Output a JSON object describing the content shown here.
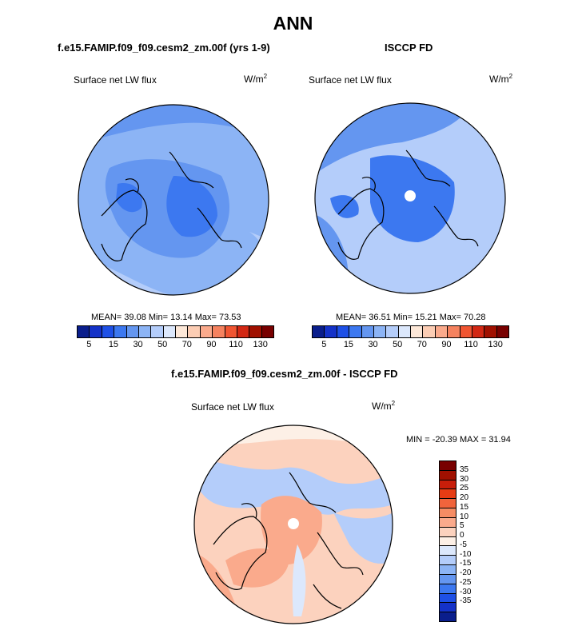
{
  "title": "ANN",
  "panels": {
    "model": {
      "title": "f.e15.FAMIP.f09_f09.cesm2_zm.00f (yrs 1-9)",
      "variable": "Surface net LW flux",
      "units": "W/m",
      "units_sup": "2",
      "mean_label": "MEAN=",
      "mean": "39.08",
      "min_label": "Min=",
      "min": "13.14",
      "max_label": "Max=",
      "max": "73.53"
    },
    "obs": {
      "title": "ISCCP FD",
      "variable": "Surface net LW flux",
      "units": "W/m",
      "units_sup": "2",
      "mean_label": "MEAN=",
      "mean": "36.51",
      "min_label": "Min=",
      "min": "15.21",
      "max_label": "Max=",
      "max": "70.28"
    },
    "diff": {
      "title": "f.e15.FAMIP.f09_f09.cesm2_zm.00f - ISCCP FD",
      "variable": "Surface net LW flux",
      "units": "W/m",
      "units_sup": "2",
      "stats_text": "MIN = -20.39 MAX =  31.94"
    }
  },
  "colorbars": {
    "field_ticks": [
      "5",
      "15",
      "30",
      "50",
      "70",
      "90",
      "110",
      "130"
    ],
    "field_colors": [
      "#0a1e8c",
      "#1432c8",
      "#1e50e6",
      "#3c78f0",
      "#6496f0",
      "#8cb4f5",
      "#b4cdfa",
      "#dce8fc",
      "#fde8d8",
      "#fccdb4",
      "#faaa8c",
      "#f5825f",
      "#f05532",
      "#d22814",
      "#a01000",
      "#780000"
    ],
    "diff_ticks": [
      "35",
      "30",
      "25",
      "20",
      "15",
      "10",
      "5",
      "0",
      "-5",
      "-10",
      "-15",
      "-20",
      "-25",
      "-30",
      "-35"
    ],
    "diff_colors": [
      "#780000",
      "#a01000",
      "#c81e0a",
      "#e63c14",
      "#f0643c",
      "#f58c64",
      "#faaa8c",
      "#fcd2be",
      "#fdf0e6",
      "#dce8fc",
      "#b4cdfa",
      "#8cb4f5",
      "#6496f0",
      "#3c78f0",
      "#1e50e6",
      "#1432c8",
      "#0a1e8c"
    ]
  },
  "chart_data": [
    {
      "type": "heatmap",
      "projection": "north polar stereographic",
      "title": "f.e15.FAMIP.f09_f09.cesm2_zm.00f (yrs 1-9)",
      "variable": "Surface net LW flux",
      "units": "W/m2",
      "mean": 39.08,
      "min": 13.14,
      "max": 73.53,
      "levels": [
        5,
        10,
        15,
        20,
        30,
        40,
        50,
        60,
        70,
        80,
        90,
        100,
        110,
        120,
        130
      ]
    },
    {
      "type": "heatmap",
      "projection": "north polar stereographic",
      "title": "ISCCP FD",
      "variable": "Surface net LW flux",
      "units": "W/m2",
      "mean": 36.51,
      "min": 15.21,
      "max": 70.28,
      "levels": [
        5,
        10,
        15,
        20,
        30,
        40,
        50,
        60,
        70,
        80,
        90,
        100,
        110,
        120,
        130
      ]
    },
    {
      "type": "heatmap",
      "projection": "north polar stereographic",
      "title": "f.e15.FAMIP.f09_f09.cesm2_zm.00f - ISCCP FD",
      "variable": "Surface net LW flux",
      "units": "W/m2",
      "min": -20.39,
      "max": 31.94,
      "levels": [
        -35,
        -30,
        -25,
        -20,
        -15,
        -10,
        -5,
        0,
        5,
        10,
        15,
        20,
        25,
        30,
        35
      ]
    }
  ]
}
